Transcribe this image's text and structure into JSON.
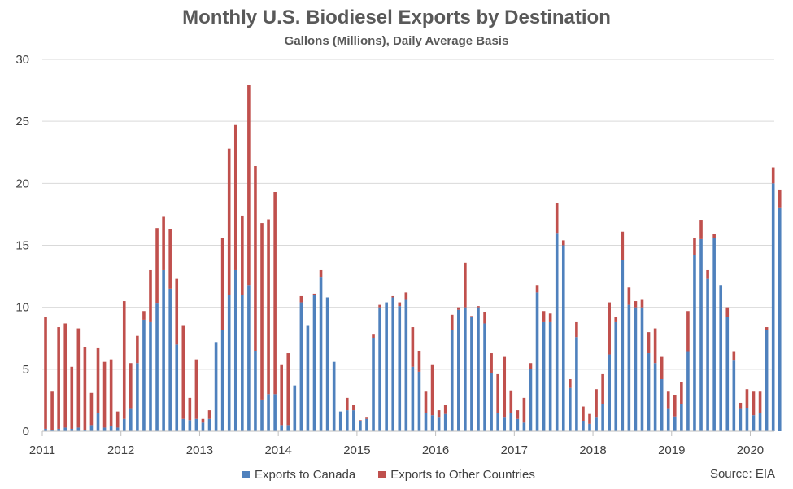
{
  "chart_data": {
    "type": "bar",
    "stacked": true,
    "title": "Monthly U.S. Biodiesel Exports by Destination",
    "subtitle": "Gallons (Millions), Daily Average Basis",
    "xlabel": "",
    "ylabel": "",
    "ylim": [
      0,
      30
    ],
    "yticks": [
      "0",
      "5",
      "10",
      "15",
      "20",
      "25",
      "30"
    ],
    "xticks": [
      "2011",
      "2012",
      "2013",
      "2014",
      "2015",
      "2016",
      "2017",
      "2018",
      "2019",
      "2020"
    ],
    "grid": true,
    "legend_position": "bottom",
    "source": "Source: EIA",
    "colors": {
      "canada": "#4F81BD",
      "other": "#C0504D",
      "grid": "#D9D9D9",
      "axis": "#BFBFBF"
    },
    "series": [
      {
        "name": "Exports to Canada",
        "values": [
          0.2,
          0.1,
          0.2,
          0.3,
          0.2,
          0.3,
          0.1,
          0.5,
          1.5,
          0.3,
          0.4,
          0.3,
          1.0,
          1.8,
          5.5,
          9.0,
          8.8,
          10.3,
          13.0,
          11.5,
          7.0,
          1.0,
          0.9,
          1.0,
          0.7,
          1.0,
          7.2,
          8.2,
          11.0,
          13.0,
          11.0,
          11.8,
          6.5,
          2.5,
          3.0,
          3.0,
          0.5,
          0.5,
          3.7,
          10.4,
          8.5,
          11.0,
          12.4,
          10.8,
          5.6,
          1.6,
          1.7,
          1.7,
          0.8,
          1.0,
          7.5,
          10.0,
          10.4,
          10.8,
          10.1,
          10.6,
          5.2,
          4.8,
          1.5,
          1.3,
          1.1,
          1.4,
          8.2,
          9.8,
          10.0,
          9.2,
          10.0,
          8.7,
          4.7,
          1.5,
          1.1,
          1.5,
          1.0,
          0.7,
          5.0,
          11.2,
          8.8,
          8.8,
          16.0,
          15.0,
          3.5,
          7.6,
          0.8,
          0.6,
          1.1,
          2.2,
          6.2,
          8.8,
          13.8,
          10.2,
          10.0,
          10.0,
          6.3,
          5.5,
          4.2,
          1.8,
          1.2,
          2.2,
          6.4,
          14.2,
          15.5,
          12.3,
          15.6,
          11.8,
          9.2,
          5.7,
          1.8,
          1.9,
          1.3,
          1.5,
          8.2,
          20.0,
          18.0
        ]
      },
      {
        "name": "Exports to Other Countries",
        "values": [
          9.0,
          3.1,
          8.2,
          8.4,
          5.0,
          8.0,
          6.7,
          2.6,
          5.2,
          5.3,
          5.4,
          1.3,
          9.5,
          3.7,
          2.2,
          0.7,
          4.2,
          6.1,
          4.3,
          4.8,
          5.3,
          7.5,
          1.8,
          4.8,
          0.3,
          0.7,
          0.0,
          7.4,
          11.8,
          11.7,
          6.4,
          16.1,
          14.9,
          14.3,
          14.1,
          16.3,
          4.9,
          5.8,
          0.0,
          0.5,
          0.0,
          0.1,
          0.6,
          0.0,
          0.0,
          0.0,
          1.0,
          0.4,
          0.1,
          0.1,
          0.3,
          0.2,
          0.0,
          0.1,
          0.3,
          0.6,
          3.2,
          1.7,
          1.7,
          4.1,
          0.6,
          0.7,
          1.2,
          0.2,
          3.6,
          0.1,
          0.1,
          0.9,
          1.6,
          3.1,
          4.9,
          1.8,
          0.7,
          2.0,
          0.5,
          0.6,
          0.9,
          0.7,
          2.4,
          0.4,
          0.7,
          1.2,
          1.2,
          0.8,
          2.3,
          2.4,
          4.2,
          0.4,
          2.3,
          1.4,
          0.5,
          0.6,
          1.7,
          2.8,
          1.8,
          1.4,
          1.7,
          1.8,
          3.3,
          1.4,
          1.5,
          0.7,
          0.3,
          0.0,
          0.8,
          0.7,
          0.5,
          1.5,
          1.9,
          1.7,
          0.2,
          1.3,
          1.5
        ]
      }
    ]
  }
}
